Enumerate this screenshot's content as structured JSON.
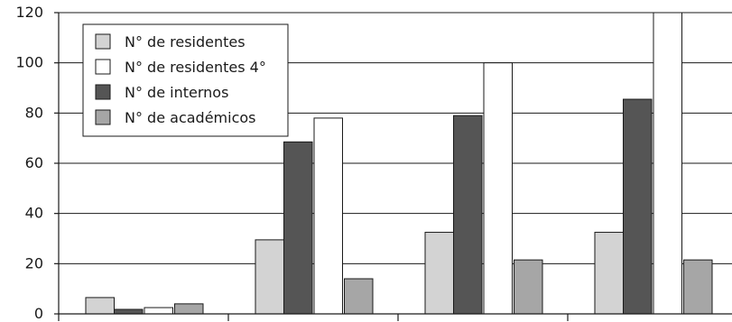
{
  "chart_data": {
    "type": "bar",
    "categories": [
      "",
      "",
      "",
      ""
    ],
    "series": [
      {
        "name": "N° de residentes",
        "color": "#d3d3d3",
        "values": [
          6.5,
          29.5,
          32.5,
          32.5
        ]
      },
      {
        "name": "N° de internos",
        "color": "#555555",
        "values": [
          1.8,
          68.5,
          79,
          85.5
        ]
      },
      {
        "name": "N° de residentes 4°",
        "color": "#ffffff",
        "values": [
          2.5,
          78,
          100,
          120
        ]
      },
      {
        "name": "N° de académicos",
        "color": "#a6a6a6",
        "values": [
          4,
          14,
          21.5,
          21.5
        ]
      }
    ],
    "legend": [
      {
        "label": "N° de residentes",
        "color": "#d3d3d3"
      },
      {
        "label": "N° de residentes 4°",
        "color": "#ffffff"
      },
      {
        "label": "N° de internos",
        "color": "#555555"
      },
      {
        "label": "N° de académicos",
        "color": "#a6a6a6"
      }
    ],
    "ylim": [
      0,
      120
    ],
    "yticks": [
      0,
      20,
      40,
      60,
      80,
      100,
      120
    ],
    "grid": true,
    "legend_position": "top-left",
    "title": "",
    "xlabel": "",
    "ylabel": ""
  }
}
